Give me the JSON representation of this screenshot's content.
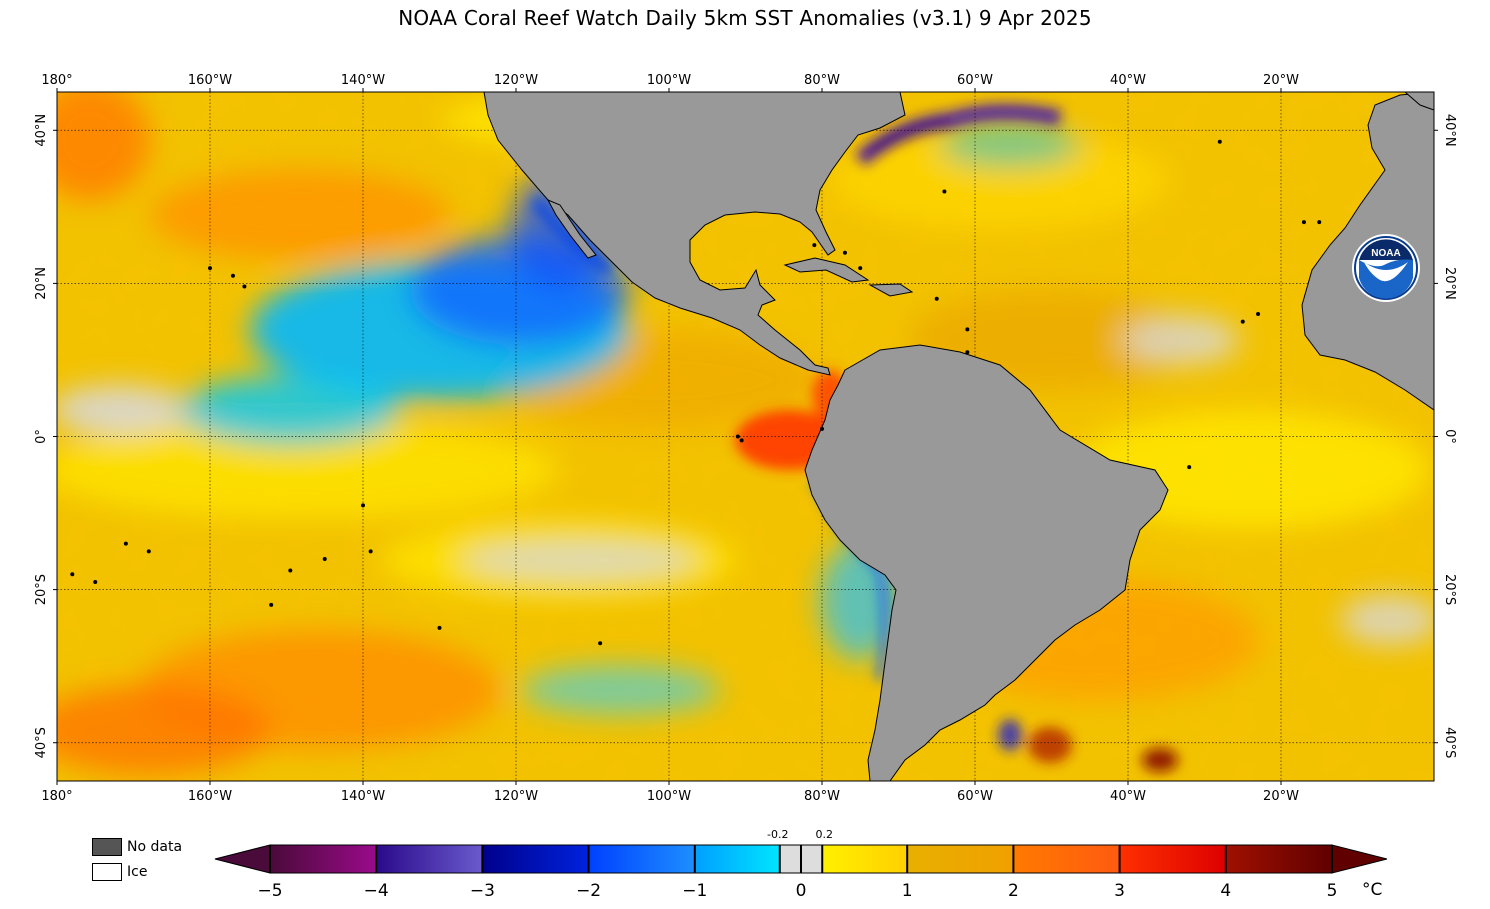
{
  "title": "NOAA Coral Reef Watch Daily 5km SST Anomalies  (v3.1)   9 Apr 2025",
  "map": {
    "lon_range": [
      -180,
      0
    ],
    "lat_range": [
      -45,
      45
    ],
    "lon_ticks": [
      "180°",
      "160°W",
      "140°W",
      "120°W",
      "100°W",
      "80°W",
      "60°W",
      "40°W",
      "20°W"
    ],
    "lon_values": [
      -180,
      -160,
      -140,
      -120,
      -100,
      -80,
      -60,
      -40,
      -20
    ],
    "lat_ticks": [
      "40°N",
      "20°N",
      "0°",
      "20°S",
      "40°S"
    ],
    "lat_values": [
      40,
      20,
      0,
      -20,
      -40
    ],
    "land_color": "#999999",
    "ocean_base_color": "#f2c200"
  },
  "logo": {
    "text": "NOAA",
    "color": "#0a3d8f"
  },
  "legend": {
    "no_data_label": "No data",
    "no_data_color": "#555555",
    "ice_label": "Ice",
    "ice_color": "#ffffff"
  },
  "colorbar": {
    "min": -5,
    "max": 5,
    "tick_labels": [
      "−5",
      "−4",
      "−3",
      "−2",
      "−1",
      "0",
      "1",
      "2",
      "3",
      "4",
      "5"
    ],
    "tick_values": [
      -5,
      -4,
      -3,
      -2,
      -1,
      0,
      1,
      2,
      3,
      4,
      5
    ],
    "neutral_labels": [
      "-0.2",
      "0.2"
    ],
    "neutral_values": [
      -0.2,
      0.2
    ],
    "unit": "°C",
    "bands": [
      {
        "from": -5,
        "to": -4,
        "c1": "#4a0a3a",
        "c2": "#9a0a8a"
      },
      {
        "from": -4,
        "to": -3,
        "c1": "#2a0a8a",
        "c2": "#6a5acd"
      },
      {
        "from": -3,
        "to": -2,
        "c1": "#00008b",
        "c2": "#0022dd"
      },
      {
        "from": -2,
        "to": -1,
        "c1": "#0040ff",
        "c2": "#1e8fff"
      },
      {
        "from": -1,
        "to": -0.2,
        "c1": "#00a0ff",
        "c2": "#00e5ff"
      },
      {
        "from": -0.2,
        "to": 0.2,
        "c1": "#dddddd",
        "c2": "#dddddd"
      },
      {
        "from": 0.2,
        "to": 1,
        "c1": "#fff000",
        "c2": "#ffd000"
      },
      {
        "from": 1,
        "to": 2,
        "c1": "#e8b000",
        "c2": "#f0a000"
      },
      {
        "from": 2,
        "to": 3,
        "c1": "#ff7a00",
        "c2": "#ff5a10"
      },
      {
        "from": 3,
        "to": 4,
        "c1": "#ff3000",
        "c2": "#dd0000"
      },
      {
        "from": 4,
        "to": 5,
        "c1": "#a01000",
        "c2": "#600000"
      }
    ]
  }
}
